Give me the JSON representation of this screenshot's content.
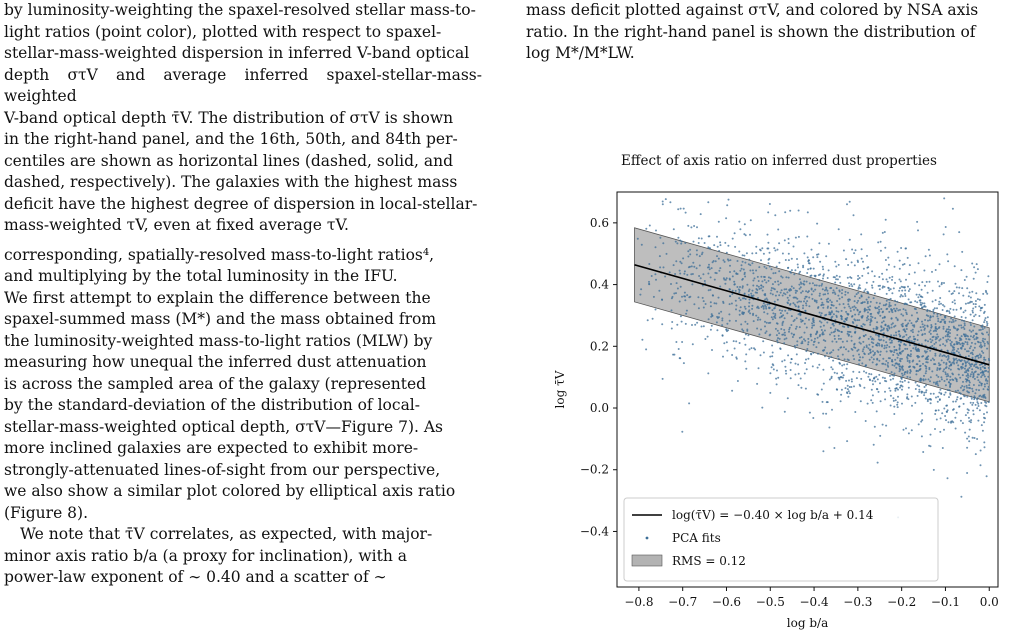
{
  "left_column": {
    "caption_lines": [
      "by luminosity-weighting the spaxel-resolved stellar mass-to-",
      "light ratios (point color), plotted with respect to spaxel-",
      "stellar-mass-weighted dispersion in inferred V-band optical",
      "depth στV and average inferred spaxel-stellar-mass-weighted",
      "V-band optical depth τ̄V. The distribution of στV is shown",
      "in the right-hand panel, and the 16th, 50th, and 84th per-",
      "centiles are shown as horizontal lines (dashed, solid, and",
      "dashed, respectively). The galaxies with the highest mass",
      "deficit have the highest degree of dispersion in local-stellar-",
      "mass-weighted τV, even at fixed average τV."
    ],
    "para1_lines": [
      "corresponding, spatially-resolved mass-to-light ratios⁴,",
      "and multiplying by the total luminosity in the IFU.",
      "We first attempt to explain the difference between the",
      "spaxel-summed mass (M*) and the mass obtained from",
      "the luminosity-weighted mass-to-light ratios (MLW) by",
      "measuring how unequal the inferred dust attenuation",
      "is across the sampled area of the galaxy (represented",
      "by the standard-deviation of the distribution of local-",
      "stellar-mass-weighted optical depth, στV—Figure 7). As",
      "more inclined galaxies are expected to exhibit more-",
      "strongly-attenuated lines-of-sight from our perspective,",
      "we also show a similar plot colored by elliptical axis ratio",
      "(Figure 8)."
    ],
    "para2_lines": [
      "We note that τ̄V correlates, as expected, with major-",
      "minor axis ratio b/a (a proxy for inclination), with a",
      "power-law exponent of ∼ 0.40 and a scatter of ∼"
    ]
  },
  "right_column": {
    "caption_lines": [
      "mass deficit plotted against στV, and colored by NSA axis",
      "ratio. In the right-hand panel is shown the distribution of",
      "log M*/M*LW."
    ]
  },
  "figure": {
    "title": "Effect of axis ratio on inferred dust properties",
    "xlabel": "log b/a",
    "ylabel": "log τ̄V",
    "legend": {
      "line": "log(τ̄V) = −0.40 × log b/a + 0.14",
      "points": "PCA fits",
      "band": "RMS = 0.12"
    },
    "xticks": [
      "−0.8",
      "−0.7",
      "−0.6",
      "−0.5",
      "−0.4",
      "−0.3",
      "−0.2",
      "−0.1",
      "0.0"
    ],
    "yticks": [
      "−0.4",
      "−0.2",
      "0.0",
      "0.2",
      "0.4",
      "0.6"
    ],
    "colors": {
      "points": "#3d6f98",
      "fit_line": "#000000",
      "band": "#b3b3b3"
    }
  },
  "chart_data": {
    "type": "scatter",
    "title": "Effect of axis ratio on inferred dust properties",
    "xlabel": "log b/a",
    "ylabel": "log τ̄V",
    "xlim": [
      -0.85,
      0.02
    ],
    "ylim": [
      -0.58,
      0.7
    ],
    "fit": {
      "slope": -0.4,
      "intercept": 0.14,
      "rms": 0.12,
      "x_range": [
        -0.81,
        0.0
      ]
    },
    "series": [
      {
        "name": "PCA fits",
        "n_points": 2600,
        "x_range": [
          -0.81,
          0.0
        ],
        "scatter": 0.12
      }
    ],
    "legend_position": "lower-left",
    "grid": false
  }
}
